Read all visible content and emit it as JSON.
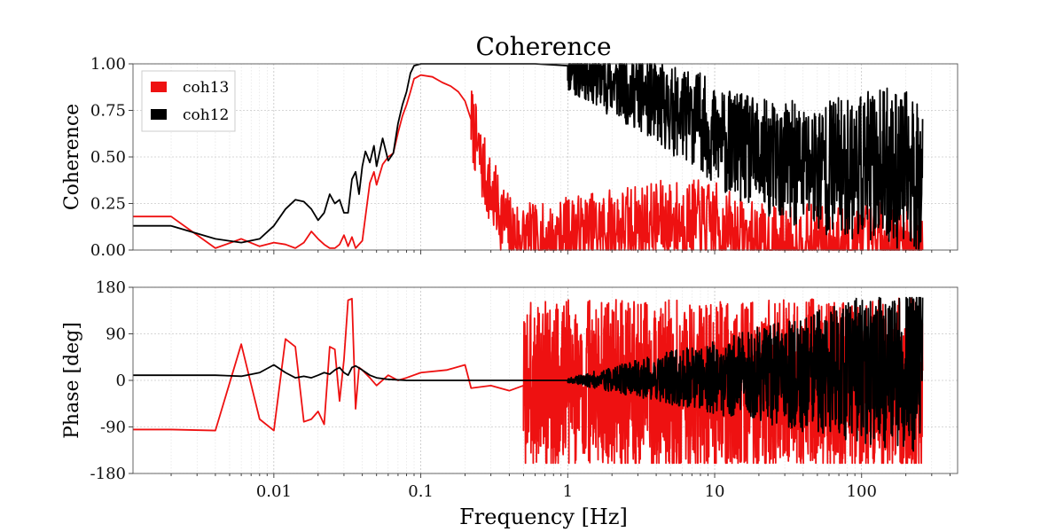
{
  "title": "Coherence",
  "colors": {
    "coh13": "#ee1111",
    "coh12": "#000000"
  },
  "chart_data": [
    {
      "type": "line",
      "ylabel": "Coherence",
      "xscale": "log",
      "xlim": [
        0.0011,
        450
      ],
      "ylim": [
        0,
        1
      ],
      "yticks": [
        0,
        0.25,
        0.5,
        0.75,
        1.0
      ],
      "ytick_labels": [
        "0.00",
        "0.25",
        "0.50",
        "0.75",
        "1.00"
      ],
      "grid": true,
      "legend": {
        "placement": "top-left",
        "entries": [
          "coh13",
          "coh12"
        ]
      },
      "series": [
        {
          "name": "coh13",
          "x": [
            0.0011,
            0.002,
            0.004,
            0.006,
            0.008,
            0.01,
            0.012,
            0.014,
            0.016,
            0.018,
            0.02,
            0.022,
            0.024,
            0.026,
            0.028,
            0.03,
            0.032,
            0.034,
            0.036,
            0.04,
            0.042,
            0.045,
            0.048,
            0.05,
            0.055,
            0.06,
            0.065,
            0.07,
            0.075,
            0.08,
            0.085,
            0.09,
            0.1,
            0.12,
            0.14,
            0.16,
            0.18,
            0.2,
            0.22,
            0.25,
            0.3,
            0.35,
            0.4,
            0.5,
            0.6,
            0.8,
            1.0,
            1.5,
            2,
            3,
            5,
            8,
            10,
            15,
            20,
            30,
            50,
            100,
            150,
            200,
            260
          ],
          "y": [
            0.18,
            0.18,
            0.01,
            0.06,
            0.02,
            0.04,
            0.03,
            0.01,
            0.04,
            0.1,
            0.06,
            0.03,
            0.01,
            0.01,
            0.03,
            0.08,
            0.02,
            0.07,
            0.01,
            0.05,
            0.18,
            0.36,
            0.42,
            0.35,
            0.46,
            0.5,
            0.52,
            0.63,
            0.72,
            0.78,
            0.85,
            0.92,
            0.94,
            0.93,
            0.9,
            0.88,
            0.85,
            0.8,
            0.7,
            0.5,
            0.3,
            0.2,
            0.1,
            0.06,
            0.04,
            0.05,
            0.08,
            0.1,
            0.12,
            0.14,
            0.16,
            0.15,
            0.14,
            0.06,
            0.02,
            0.01,
            0.01,
            0.02,
            0.01,
            0.01,
            0.0
          ],
          "noise": {
            "start_x": 0.22,
            "end_x": 260,
            "amp_start": 0.2,
            "amp_end": 0.25,
            "density": 900,
            "seed": 7
          }
        },
        {
          "name": "coh12",
          "x": [
            0.0011,
            0.002,
            0.004,
            0.006,
            0.008,
            0.01,
            0.012,
            0.014,
            0.016,
            0.018,
            0.02,
            0.022,
            0.024,
            0.026,
            0.028,
            0.03,
            0.032,
            0.034,
            0.036,
            0.038,
            0.04,
            0.042,
            0.045,
            0.048,
            0.05,
            0.055,
            0.06,
            0.065,
            0.07,
            0.075,
            0.08,
            0.085,
            0.09,
            0.1,
            0.15,
            0.3,
            0.6,
            1.0,
            1.5,
            2,
            3,
            5,
            8,
            10,
            15,
            20,
            40,
            80,
            150,
            260
          ],
          "y": [
            0.13,
            0.13,
            0.06,
            0.04,
            0.06,
            0.13,
            0.22,
            0.27,
            0.26,
            0.22,
            0.16,
            0.2,
            0.3,
            0.25,
            0.27,
            0.2,
            0.2,
            0.38,
            0.42,
            0.3,
            0.45,
            0.53,
            0.47,
            0.56,
            0.45,
            0.6,
            0.48,
            0.52,
            0.68,
            0.78,
            0.85,
            0.95,
            0.99,
            1.0,
            1.0,
            1.0,
            1.0,
            0.99,
            0.95,
            0.9,
            0.85,
            0.75,
            0.7,
            0.6,
            0.55,
            0.5,
            0.45,
            0.45,
            0.45,
            0.4
          ],
          "noise": {
            "start_x": 1.0,
            "end_x": 260,
            "amp_start": 0.15,
            "amp_end": 0.45,
            "density": 1100,
            "seed": 11
          }
        }
      ]
    },
    {
      "type": "line",
      "xlabel": "Frequency [Hz]",
      "ylabel": "Phase [deg]",
      "xscale": "log",
      "xlim": [
        0.0011,
        450
      ],
      "ylim": [
        -180,
        180
      ],
      "yticks": [
        -180,
        -90,
        0,
        90,
        180
      ],
      "ytick_labels": [
        "-180",
        "-90",
        "0",
        "90",
        "180"
      ],
      "xticks": [
        0.01,
        0.1,
        1,
        10,
        100
      ],
      "xtick_labels": [
        "0.01",
        "0.1",
        "1",
        "10",
        "100"
      ],
      "grid": true,
      "series": [
        {
          "name": "coh13",
          "x": [
            0.0011,
            0.002,
            0.004,
            0.006,
            0.008,
            0.01,
            0.012,
            0.014,
            0.016,
            0.018,
            0.02,
            0.022,
            0.024,
            0.026,
            0.028,
            0.03,
            0.032,
            0.034,
            0.036,
            0.038,
            0.04,
            0.045,
            0.05,
            0.06,
            0.07,
            0.08,
            0.1,
            0.15,
            0.2,
            0.22,
            0.3,
            0.4,
            0.5
          ],
          "y": [
            -95,
            -95,
            -97,
            70,
            -75,
            -97,
            80,
            65,
            -80,
            -75,
            -60,
            -85,
            65,
            60,
            -40,
            40,
            155,
            158,
            -55,
            25,
            20,
            5,
            -10,
            10,
            0,
            5,
            15,
            20,
            30,
            -15,
            -10,
            -20,
            -10
          ],
          "noise": {
            "start_x": 0.5,
            "end_x": 260,
            "amp_start": 165,
            "amp_end": 170,
            "density": 1600,
            "seed": 3,
            "clip": [
              -160,
              160
            ]
          }
        },
        {
          "name": "coh12",
          "x": [
            0.0011,
            0.004,
            0.006,
            0.008,
            0.01,
            0.012,
            0.014,
            0.016,
            0.018,
            0.02,
            0.022,
            0.024,
            0.026,
            0.028,
            0.03,
            0.032,
            0.034,
            0.036,
            0.04,
            0.045,
            0.05,
            0.06,
            0.08,
            0.1,
            0.3,
            0.5,
            1,
            2,
            5,
            10,
            20,
            50,
            100,
            260
          ],
          "y": [
            10,
            10,
            8,
            15,
            30,
            15,
            5,
            8,
            5,
            10,
            15,
            12,
            20,
            25,
            15,
            10,
            25,
            28,
            20,
            10,
            5,
            2,
            0,
            0,
            0,
            0,
            0,
            2,
            5,
            8,
            10,
            15,
            20,
            25
          ],
          "noise": {
            "start_x": 1.0,
            "end_x": 260,
            "amp_start": 4,
            "amp_end": 170,
            "density": 1300,
            "seed": 19,
            "clip": [
              -160,
              160
            ]
          }
        }
      ]
    }
  ]
}
